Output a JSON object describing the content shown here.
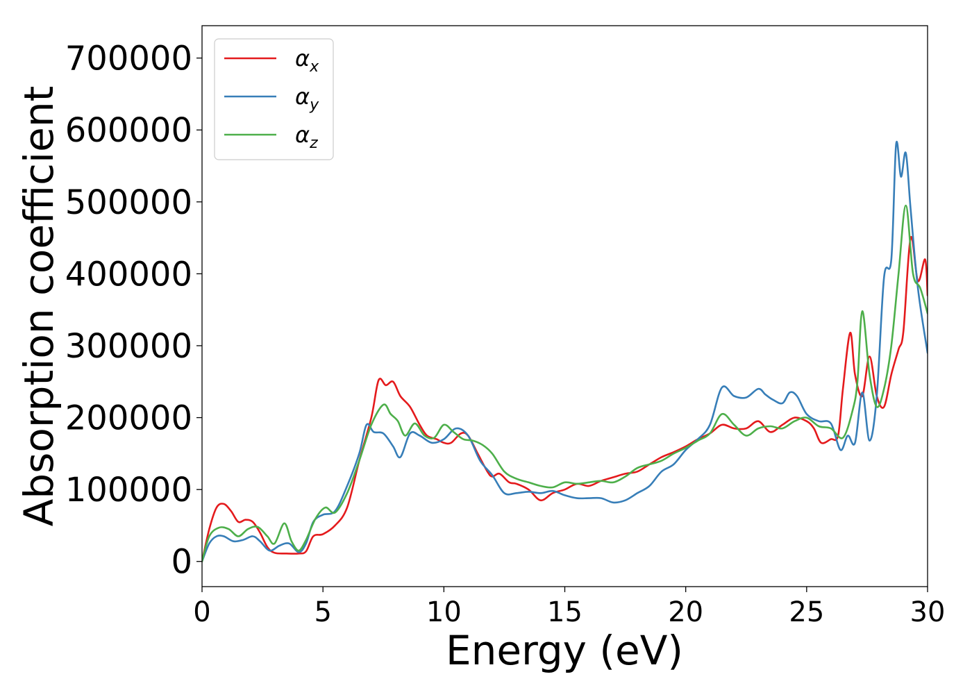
{
  "colors": {
    "alpha_x": "#e41a1c",
    "alpha_y": "#377eb8",
    "alpha_z": "#4daf4a"
  },
  "chart_data": {
    "type": "line",
    "title": "",
    "xlabel": "Energy (eV)",
    "ylabel": "Absorption coefficient",
    "xlim": [
      0,
      30
    ],
    "ylim": [
      -35000,
      745000
    ],
    "xticks": [
      0,
      5,
      10,
      15,
      20,
      25,
      30
    ],
    "xtick_labels": [
      "0",
      "5",
      "10",
      "15",
      "20",
      "25",
      "30"
    ],
    "yticks": [
      0,
      100000,
      200000,
      300000,
      400000,
      500000,
      600000,
      700000
    ],
    "ytick_labels": [
      "0",
      "100000",
      "200000",
      "300000",
      "400000",
      "500000",
      "600000",
      "700000"
    ],
    "grid": false,
    "legend_position": "top-left",
    "series": [
      {
        "name": "α_x",
        "legend_base": "α",
        "legend_sub": "x",
        "color": "#e41a1c",
        "x": [
          0,
          0.3,
          0.6,
          0.9,
          1.2,
          1.5,
          1.8,
          2.1,
          2.4,
          2.7,
          3.0,
          3.5,
          4.0,
          4.3,
          4.6,
          5.0,
          5.5,
          6.0,
          6.5,
          7.0,
          7.3,
          7.6,
          7.9,
          8.2,
          8.6,
          9.0,
          9.3,
          9.7,
          10.0,
          10.3,
          10.7,
          11.0,
          11.4,
          11.8,
          12.0,
          12.3,
          12.7,
          13.0,
          13.5,
          14.0,
          14.5,
          15.0,
          15.5,
          16.0,
          16.5,
          17.0,
          17.5,
          18.0,
          18.5,
          19.0,
          19.5,
          20.0,
          20.5,
          21.0,
          21.5,
          22.0,
          22.5,
          23.0,
          23.5,
          24.0,
          24.5,
          25.0,
          25.3,
          25.6,
          26.0,
          26.3,
          26.5,
          26.8,
          27.0,
          27.3,
          27.6,
          27.9,
          28.2,
          28.5,
          28.8,
          29.0,
          29.3,
          29.6,
          29.9,
          30.0
        ],
        "values": [
          0,
          45000,
          75000,
          80000,
          70000,
          55000,
          58000,
          55000,
          40000,
          20000,
          12000,
          11000,
          11000,
          14000,
          35000,
          38000,
          50000,
          75000,
          140000,
          200000,
          252000,
          245000,
          250000,
          230000,
          215000,
          190000,
          175000,
          170000,
          165000,
          165000,
          178000,
          175000,
          150000,
          125000,
          118000,
          122000,
          110000,
          108000,
          100000,
          85000,
          95000,
          100000,
          108000,
          105000,
          112000,
          117000,
          122000,
          125000,
          135000,
          145000,
          152000,
          160000,
          170000,
          178000,
          190000,
          185000,
          185000,
          195000,
          180000,
          190000,
          200000,
          195000,
          185000,
          165000,
          170000,
          175000,
          240000,
          318000,
          260000,
          230000,
          285000,
          230000,
          215000,
          260000,
          295000,
          320000,
          450000,
          390000,
          420000,
          370000
        ]
      },
      {
        "name": "α_y",
        "legend_base": "α",
        "legend_sub": "y",
        "color": "#377eb8",
        "x": [
          0,
          0.3,
          0.6,
          0.9,
          1.3,
          1.7,
          2.1,
          2.4,
          2.8,
          3.2,
          3.6,
          4.0,
          4.3,
          4.6,
          5.0,
          5.5,
          6.0,
          6.5,
          6.8,
          7.1,
          7.5,
          7.9,
          8.2,
          8.6,
          9.0,
          9.5,
          10.0,
          10.5,
          11.0,
          11.5,
          12.0,
          12.5,
          13.0,
          13.5,
          14.0,
          14.5,
          15.0,
          15.5,
          16.0,
          16.5,
          17.0,
          17.5,
          18.0,
          18.5,
          19.0,
          19.5,
          20.0,
          20.5,
          21.0,
          21.5,
          22.0,
          22.5,
          23.0,
          23.3,
          23.6,
          24.0,
          24.3,
          24.6,
          25.0,
          25.5,
          26.0,
          26.4,
          26.7,
          27.0,
          27.3,
          27.6,
          27.9,
          28.2,
          28.5,
          28.7,
          28.9,
          29.1,
          29.3,
          29.6,
          30.0
        ],
        "values": [
          0,
          25000,
          35000,
          35000,
          28000,
          30000,
          35000,
          28000,
          15000,
          22000,
          25000,
          13000,
          25000,
          55000,
          65000,
          70000,
          105000,
          150000,
          190000,
          180000,
          178000,
          160000,
          145000,
          178000,
          175000,
          165000,
          170000,
          185000,
          175000,
          140000,
          120000,
          95000,
          95000,
          97000,
          95000,
          98000,
          92000,
          88000,
          88000,
          88000,
          82000,
          85000,
          95000,
          105000,
          125000,
          135000,
          155000,
          170000,
          190000,
          242000,
          230000,
          228000,
          240000,
          232000,
          225000,
          220000,
          235000,
          230000,
          205000,
          195000,
          192000,
          155000,
          175000,
          165000,
          235000,
          168000,
          230000,
          395000,
          420000,
          580000,
          535000,
          568000,
          490000,
          380000,
          290000
        ]
      },
      {
        "name": "α_z",
        "legend_base": "α",
        "legend_sub": "z",
        "color": "#4daf4a",
        "x": [
          0,
          0.3,
          0.7,
          1.1,
          1.5,
          1.9,
          2.3,
          2.7,
          3.0,
          3.4,
          3.7,
          4.0,
          4.3,
          4.7,
          5.1,
          5.5,
          6.0,
          6.5,
          7.0,
          7.5,
          7.8,
          8.1,
          8.4,
          8.8,
          9.2,
          9.6,
          10.0,
          10.4,
          10.8,
          11.2,
          11.6,
          12.0,
          12.5,
          13.0,
          13.5,
          14.0,
          14.5,
          15.0,
          15.5,
          16.0,
          16.5,
          17.0,
          17.5,
          18.0,
          18.5,
          19.0,
          19.5,
          20.0,
          20.5,
          21.0,
          21.5,
          22.0,
          22.5,
          23.0,
          23.5,
          24.0,
          24.5,
          25.0,
          25.5,
          26.0,
          26.5,
          26.9,
          27.1,
          27.3,
          27.6,
          27.9,
          28.2,
          28.5,
          28.8,
          29.1,
          29.4,
          29.7,
          30.0
        ],
        "values": [
          0,
          35000,
          47000,
          45000,
          35000,
          45000,
          48000,
          35000,
          25000,
          53000,
          28000,
          15000,
          30000,
          60000,
          75000,
          68000,
          95000,
          140000,
          190000,
          218000,
          205000,
          195000,
          175000,
          192000,
          175000,
          172000,
          190000,
          180000,
          170000,
          168000,
          162000,
          150000,
          125000,
          115000,
          110000,
          105000,
          103000,
          110000,
          108000,
          110000,
          112000,
          110000,
          118000,
          130000,
          135000,
          140000,
          150000,
          158000,
          168000,
          178000,
          205000,
          190000,
          175000,
          185000,
          188000,
          185000,
          195000,
          200000,
          188000,
          185000,
          172000,
          210000,
          250000,
          348000,
          260000,
          215000,
          240000,
          300000,
          400000,
          495000,
          400000,
          380000,
          345000
        ]
      }
    ]
  }
}
